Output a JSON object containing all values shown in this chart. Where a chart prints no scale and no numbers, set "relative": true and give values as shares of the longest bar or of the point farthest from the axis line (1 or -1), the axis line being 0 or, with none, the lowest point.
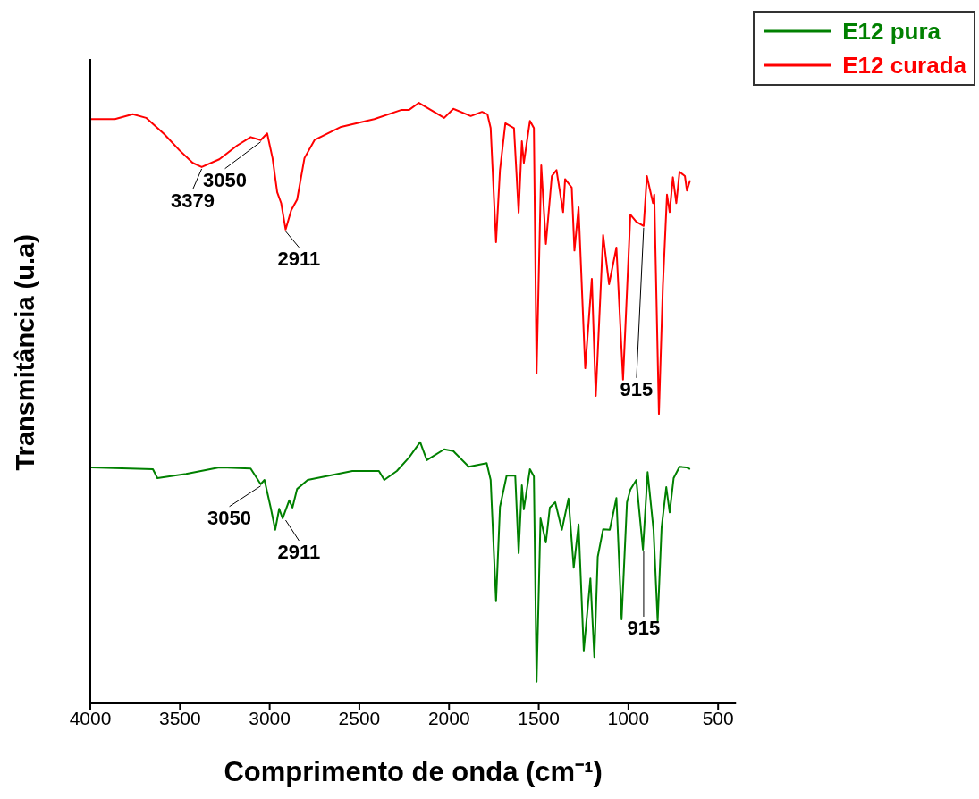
{
  "chart_data": {
    "type": "line",
    "relative": true,
    "xlabel": "Comprimento de onda (cm⁻¹)",
    "ylabel": "Transmitância (u.a)",
    "xlim": [
      4000,
      400
    ],
    "xticks": [
      4000,
      3500,
      3000,
      2500,
      2000,
      1500,
      1000,
      500
    ],
    "legend": "top right",
    "marker": "none",
    "grid": false,
    "series": [
      {
        "name": "E12 pura",
        "color": "#008000",
        "x": [
          3996,
          3651,
          3626,
          3466,
          3281,
          3106,
          3050,
          3029,
          2995,
          2969,
          2947,
          2928,
          2891,
          2873,
          2847,
          2788,
          2539,
          2391,
          2361,
          2291,
          2224,
          2161,
          2124,
          2027,
          1976,
          1890,
          1790,
          1768,
          1738,
          1716,
          1679,
          1631,
          1612,
          1594,
          1583,
          1549,
          1527,
          1512,
          1490,
          1460,
          1438,
          1408,
          1371,
          1334,
          1305,
          1278,
          1249,
          1212,
          1190,
          1171,
          1141,
          1104,
          1067,
          1038,
          1008,
          989,
          956,
          919,
          893,
          860,
          837,
          815,
          789,
          770,
          748,
          715,
          678,
          656
        ],
        "values": [
          0.393,
          0.39,
          0.375,
          0.382,
          0.393,
          0.391,
          0.365,
          0.372,
          0.327,
          0.289,
          0.324,
          0.308,
          0.338,
          0.326,
          0.357,
          0.372,
          0.387,
          0.387,
          0.372,
          0.387,
          0.409,
          0.435,
          0.405,
          0.423,
          0.42,
          0.394,
          0.4,
          0.372,
          0.17,
          0.327,
          0.379,
          0.379,
          0.25,
          0.363,
          0.323,
          0.39,
          0.378,
          0.036,
          0.308,
          0.268,
          0.326,
          0.335,
          0.289,
          0.341,
          0.226,
          0.298,
          0.088,
          0.208,
          0.077,
          0.244,
          0.29,
          0.289,
          0.342,
          0.14,
          0.335,
          0.356,
          0.372,
          0.256,
          0.385,
          0.289,
          0.137,
          0.293,
          0.36,
          0.318,
          0.375,
          0.394,
          0.393,
          0.39
        ]
      },
      {
        "name": "E12 curada",
        "color": "#ff0000",
        "x": [
          3996,
          3863,
          3763,
          3689,
          3588,
          3503,
          3429,
          3379,
          3281,
          3181,
          3106,
          3050,
          3014,
          2984,
          2958,
          2936,
          2911,
          2880,
          2847,
          2806,
          2750,
          2602,
          2417,
          2268,
          2224,
          2168,
          2027,
          1976,
          1879,
          1816,
          1786,
          1768,
          1738,
          1716,
          1686,
          1638,
          1612,
          1594,
          1583,
          1549,
          1527,
          1512,
          1486,
          1460,
          1427,
          1401,
          1364,
          1353,
          1316,
          1301,
          1278,
          1241,
          1204,
          1182,
          1141,
          1108,
          1067,
          1030,
          989,
          956,
          915,
          897,
          863,
          856,
          830,
          808,
          785,
          770,
          752,
          733,
          715,
          685,
          674,
          656
        ],
        "values": [
          0.973,
          0.973,
          0.981,
          0.975,
          0.948,
          0.921,
          0.9,
          0.893,
          0.906,
          0.929,
          0.943,
          0.938,
          0.949,
          0.908,
          0.851,
          0.833,
          0.789,
          0.821,
          0.839,
          0.908,
          0.938,
          0.96,
          0.973,
          0.988,
          0.988,
          1.0,
          0.975,
          0.99,
          0.978,
          0.985,
          0.981,
          0.958,
          0.768,
          0.888,
          0.966,
          0.958,
          0.817,
          0.936,
          0.9,
          0.97,
          0.958,
          0.549,
          0.896,
          0.765,
          0.878,
          0.888,
          0.818,
          0.873,
          0.859,
          0.754,
          0.826,
          0.558,
          0.707,
          0.512,
          0.78,
          0.698,
          0.759,
          0.539,
          0.814,
          0.802,
          0.795,
          0.878,
          0.833,
          0.847,
          0.482,
          0.695,
          0.847,
          0.818,
          0.876,
          0.833,
          0.885,
          0.878,
          0.854,
          0.871
        ]
      }
    ],
    "annotations": [
      {
        "text": "3379",
        "x": 3379,
        "y": 0.893
      },
      {
        "text": "3050",
        "x": 3050,
        "y": 0.938
      },
      {
        "text": "2911",
        "x": 2911,
        "y": 0.789
      },
      {
        "text": "915",
        "x": 915,
        "y": 0.795
      },
      {
        "text": "3050",
        "x": 3050,
        "y": 0.365
      },
      {
        "text": "2911",
        "x": 2911,
        "y": 0.308
      },
      {
        "text": "915",
        "x": 915,
        "y": 0.256
      }
    ]
  }
}
